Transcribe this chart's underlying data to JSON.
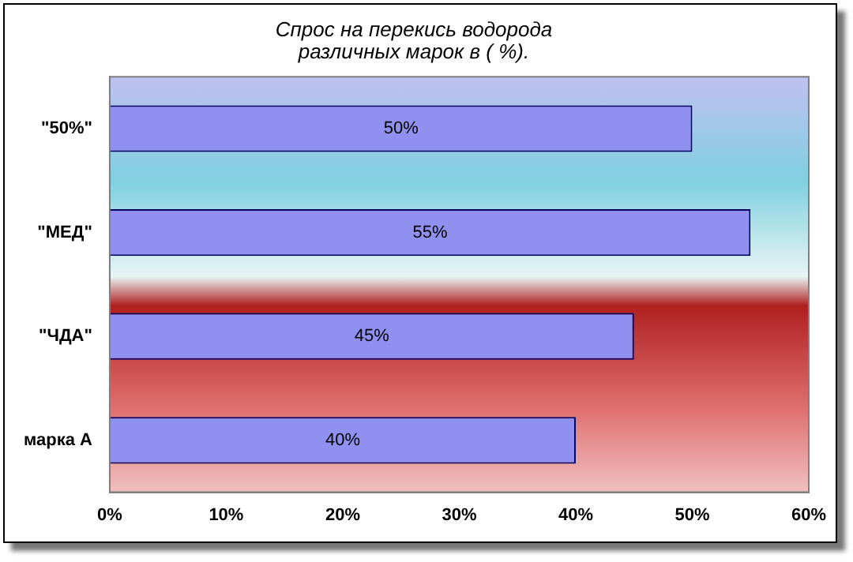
{
  "chart_data": {
    "type": "bar",
    "orientation": "horizontal",
    "title": "Спрос на перекись водорода\nразличных марок в ( %).",
    "categories": [
      "\"50%\"",
      "\"МЕД\"",
      "\"ЧДА\"",
      "марка А"
    ],
    "values": [
      50,
      55,
      45,
      40
    ],
    "value_labels": [
      "50%",
      "55%",
      "45%",
      "40%"
    ],
    "color": "#9090f0",
    "xlim": [
      0,
      60
    ],
    "xticks": [
      {
        "value": 0,
        "label": "0%"
      },
      {
        "value": 10,
        "label": "10%"
      },
      {
        "value": 20,
        "label": "20%"
      },
      {
        "value": 30,
        "label": "30%"
      },
      {
        "value": 40,
        "label": "40%"
      },
      {
        "value": 50,
        "label": "50%"
      },
      {
        "value": 60,
        "label": "60%"
      }
    ],
    "grid": false,
    "legend": false
  }
}
